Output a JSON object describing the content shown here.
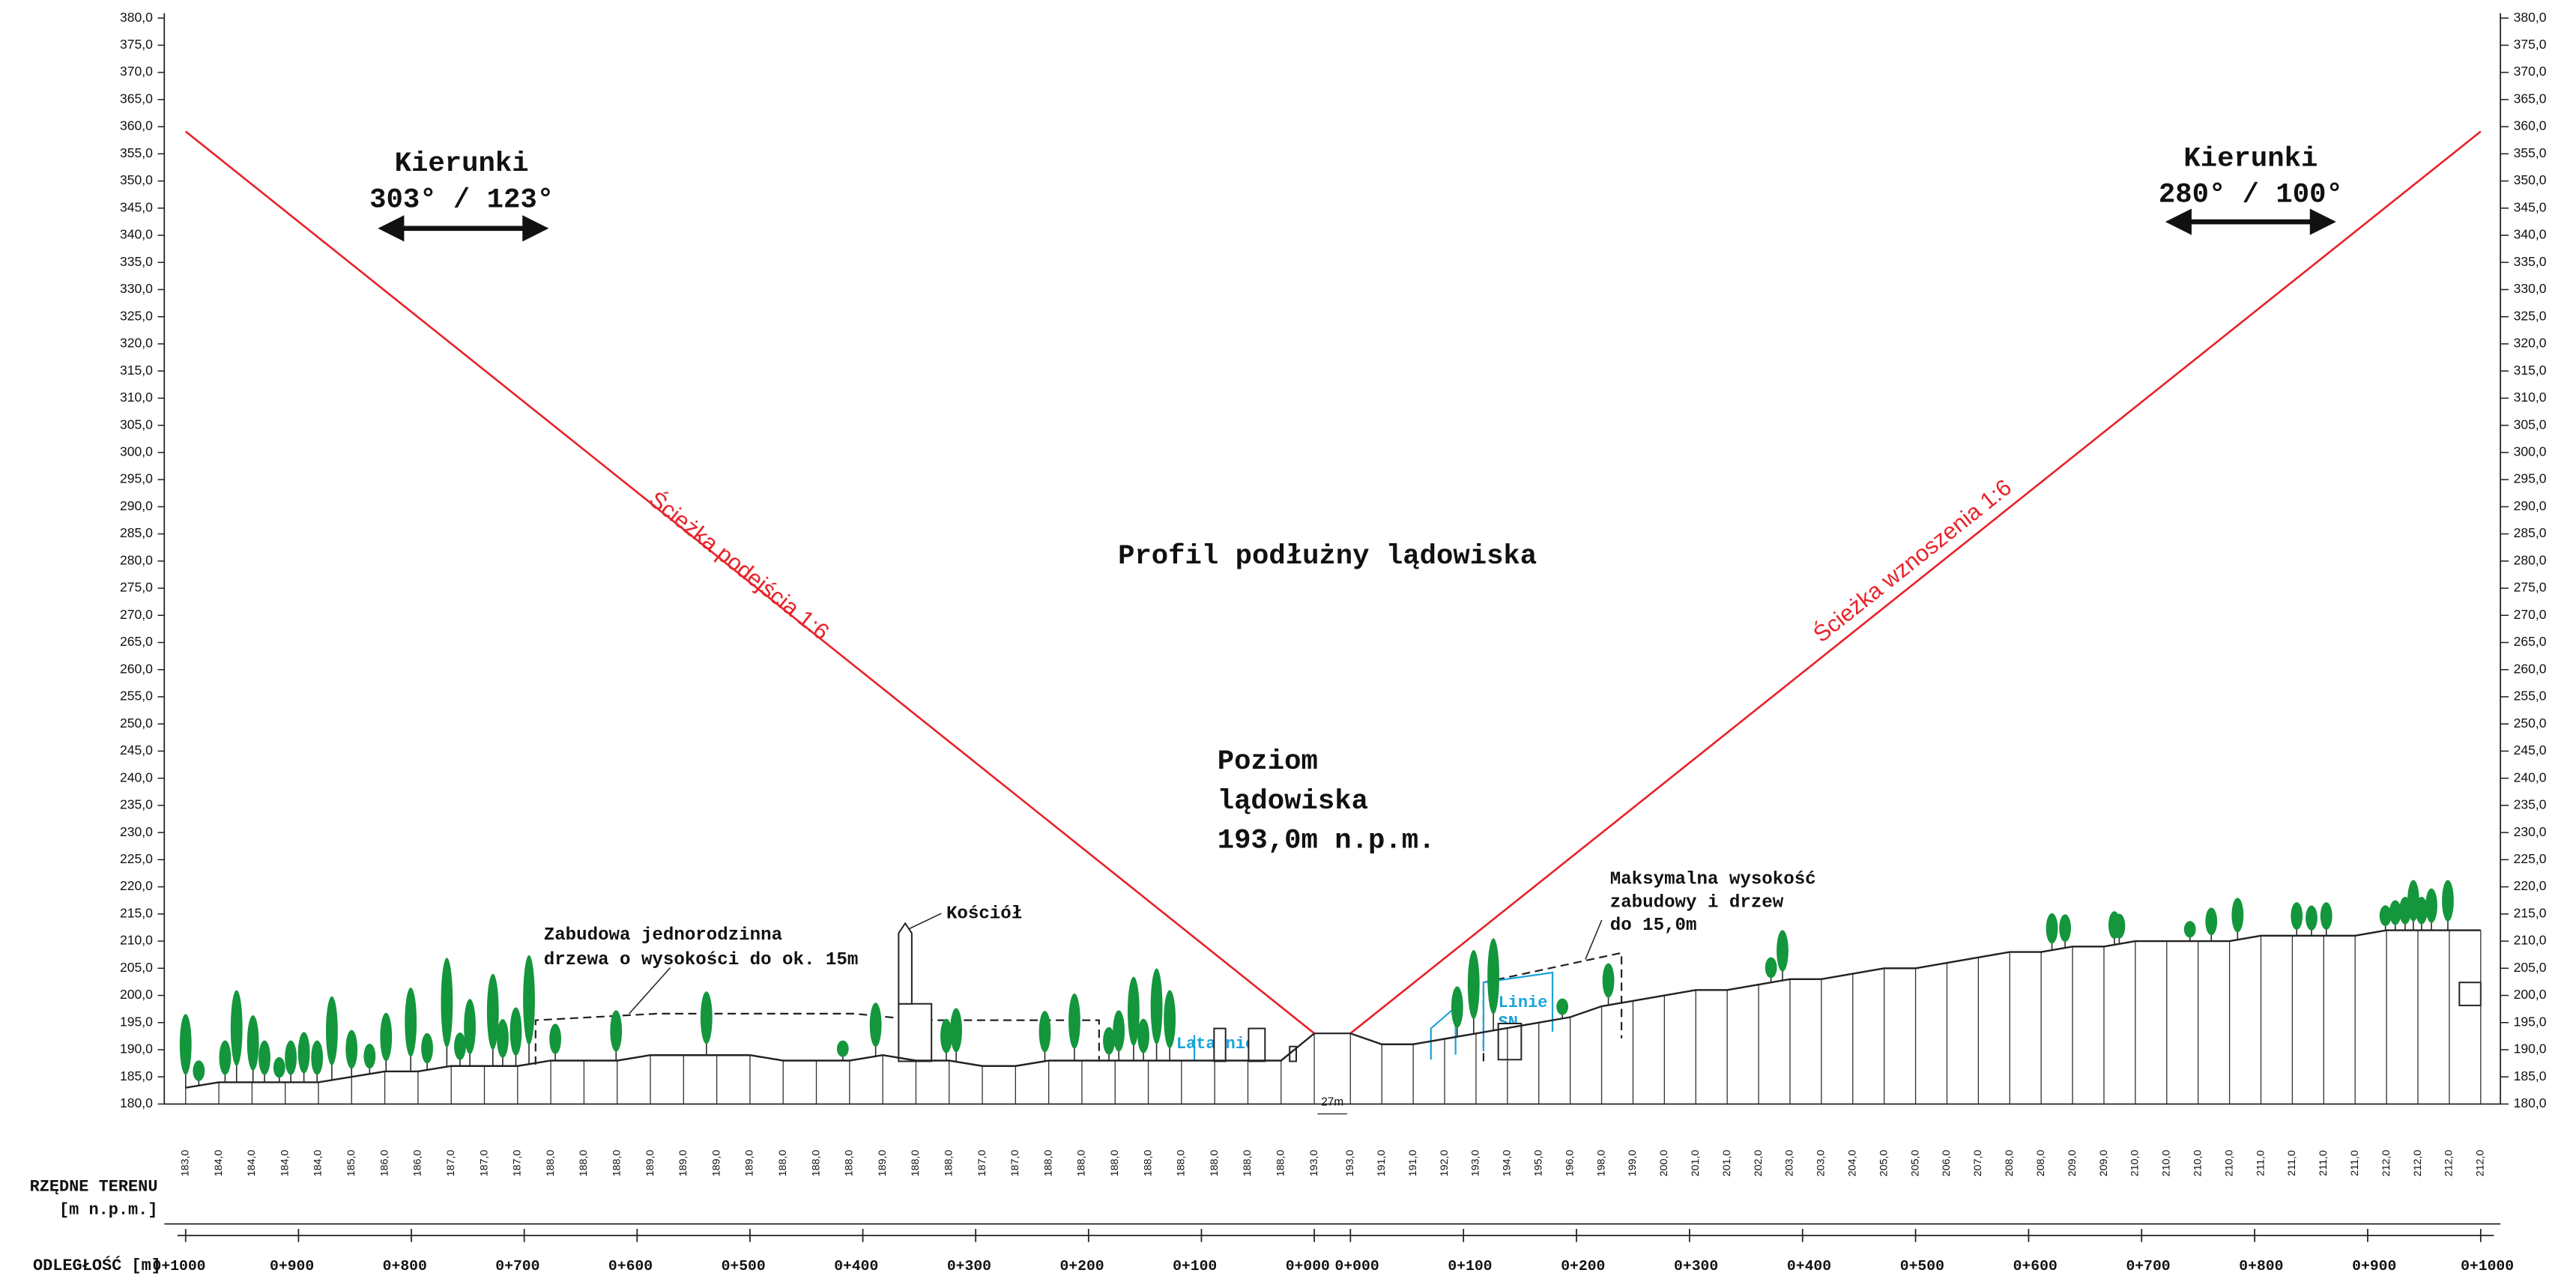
{
  "title": "Profil podłużny lądowiska",
  "directions": [
    {
      "label": "Kierunki",
      "angles": "303° / 123°"
    },
    {
      "label": "Kierunki",
      "angles": "280° / 100°"
    }
  ],
  "paths": {
    "approach": "Ścieżka podejścia 1:6",
    "climb": "Ścieżka wznoszenia 1:6"
  },
  "helipad_level": [
    "Poziom",
    "lądowiska",
    "193,0m n.p.m."
  ],
  "annotations": {
    "housing": [
      "Zabudowa jednorodzinna",
      "drzewa o wysokości do ok. 15m"
    ],
    "church": "Kościół",
    "lamps": "Latarnie",
    "power_lines": [
      "Linie",
      "SN"
    ],
    "max_height": [
      "Maksymalna wysokość",
      "zabudowy i drzew",
      "do 15,0m"
    ],
    "pad_width": "27m"
  },
  "elevation_axis": {
    "ticks": [
      {
        "value": 380,
        "label": "380,0"
      },
      {
        "value": 375,
        "label": "375,0"
      },
      {
        "value": 370,
        "label": "370,0"
      },
      {
        "value": 365,
        "label": "365,0"
      },
      {
        "value": 360,
        "label": "360,0"
      },
      {
        "value": 355,
        "label": "355,0"
      },
      {
        "value": 350,
        "label": "350,0"
      },
      {
        "value": 345,
        "label": "345,0"
      },
      {
        "value": 340,
        "label": "340,0"
      },
      {
        "value": 335,
        "label": "335,0"
      },
      {
        "value": 330,
        "label": "330,0"
      },
      {
        "value": 325,
        "label": "325,0"
      },
      {
        "value": 320,
        "label": "320,0"
      },
      {
        "value": 315,
        "label": "315,0"
      },
      {
        "value": 310,
        "label": "310,0"
      },
      {
        "value": 305,
        "label": "305,0"
      },
      {
        "value": 300,
        "label": "300,0"
      },
      {
        "value": 295,
        "label": "295,0"
      },
      {
        "value": 290,
        "label": "290,0"
      },
      {
        "value": 285,
        "label": "285,0"
      },
      {
        "value": 280,
        "label": "280,0"
      },
      {
        "value": 275,
        "label": "275,0"
      },
      {
        "value": 270,
        "label": "270,0"
      },
      {
        "value": 265,
        "label": "265,0"
      },
      {
        "value": 260,
        "label": "260,0"
      },
      {
        "value": 255,
        "label": "255,0"
      },
      {
        "value": 250,
        "label": "250,0"
      },
      {
        "value": 245,
        "label": "245,0"
      },
      {
        "value": 240,
        "label": "240,0"
      },
      {
        "value": 235,
        "label": "235,0"
      },
      {
        "value": 230,
        "label": "230,0"
      },
      {
        "value": 225,
        "label": "225,0"
      },
      {
        "value": 220,
        "label": "220,0"
      },
      {
        "value": 215,
        "label": "215,0"
      },
      {
        "value": 210,
        "label": "210,0"
      },
      {
        "value": 205,
        "label": "205,0"
      },
      {
        "value": 200,
        "label": "200,0"
      },
      {
        "value": 195,
        "label": "195,0"
      },
      {
        "value": 190,
        "label": "190,0"
      },
      {
        "value": 185,
        "label": "185,0"
      },
      {
        "value": 180,
        "label": "180,0"
      }
    ]
  },
  "terrain": {
    "label": [
      "RZĘDNE TERENU",
      "[m n.p.m.]"
    ],
    "left": [
      {
        "value": 183,
        "label": "183,0"
      },
      {
        "value": 184,
        "label": "184,0"
      },
      {
        "value": 184,
        "label": "184,0"
      },
      {
        "value": 184,
        "label": "184,0"
      },
      {
        "value": 184,
        "label": "184,0"
      },
      {
        "value": 185,
        "label": "185,0"
      },
      {
        "value": 186,
        "label": "186,0"
      },
      {
        "value": 186,
        "label": "186,0"
      },
      {
        "value": 187,
        "label": "187,0"
      },
      {
        "value": 187,
        "label": "187,0"
      },
      {
        "value": 187,
        "label": "187,0"
      },
      {
        "value": 188,
        "label": "188,0"
      },
      {
        "value": 188,
        "label": "188,0"
      },
      {
        "value": 188,
        "label": "188,0"
      },
      {
        "value": 189,
        "label": "189,0"
      },
      {
        "value": 189,
        "label": "189,0"
      },
      {
        "value": 189,
        "label": "189,0"
      },
      {
        "value": 189,
        "label": "189,0"
      },
      {
        "value": 188,
        "label": "188,0"
      },
      {
        "value": 188,
        "label": "188,0"
      },
      {
        "value": 188,
        "label": "188,0"
      },
      {
        "value": 189,
        "label": "189,0"
      },
      {
        "value": 188,
        "label": "188,0"
      },
      {
        "value": 188,
        "label": "188,0"
      },
      {
        "value": 187,
        "label": "187,0"
      },
      {
        "value": 187,
        "label": "187,0"
      },
      {
        "value": 188,
        "label": "188,0"
      },
      {
        "value": 188,
        "label": "188,0"
      },
      {
        "value": 188,
        "label": "188,0"
      },
      {
        "value": 188,
        "label": "188,0"
      },
      {
        "value": 188,
        "label": "188,0"
      },
      {
        "value": 188,
        "label": "188,0"
      },
      {
        "value": 188,
        "label": "188,0"
      },
      {
        "value": 188,
        "label": "188,0"
      },
      {
        "value": 193,
        "label": "193,0"
      }
    ],
    "right": [
      {
        "value": 193,
        "label": "193,0"
      },
      {
        "value": 191,
        "label": "191,0"
      },
      {
        "value": 191,
        "label": "191,0"
      },
      {
        "value": 192,
        "label": "192,0"
      },
      {
        "value": 193,
        "label": "193,0"
      },
      {
        "value": 194,
        "label": "194,0"
      },
      {
        "value": 195,
        "label": "195,0"
      },
      {
        "value": 196,
        "label": "196,0"
      },
      {
        "value": 198,
        "label": "198,0"
      },
      {
        "value": 199,
        "label": "199,0"
      },
      {
        "value": 200,
        "label": "200,0"
      },
      {
        "value": 201,
        "label": "201,0"
      },
      {
        "value": 201,
        "label": "201,0"
      },
      {
        "value": 202,
        "label": "202,0"
      },
      {
        "value": 203,
        "label": "203,0"
      },
      {
        "value": 203,
        "label": "203,0"
      },
      {
        "value": 204,
        "label": "204,0"
      },
      {
        "value": 205,
        "label": "205,0"
      },
      {
        "value": 205,
        "label": "205,0"
      },
      {
        "value": 206,
        "label": "206,0"
      },
      {
        "value": 207,
        "label": "207,0"
      },
      {
        "value": 208,
        "label": "208,0"
      },
      {
        "value": 208,
        "label": "208,0"
      },
      {
        "value": 209,
        "label": "209,0"
      },
      {
        "value": 209,
        "label": "209,0"
      },
      {
        "value": 210,
        "label": "210,0"
      },
      {
        "value": 210,
        "label": "210,0"
      },
      {
        "value": 210,
        "label": "210,0"
      },
      {
        "value": 210,
        "label": "210,0"
      },
      {
        "value": 211,
        "label": "211,0"
      },
      {
        "value": 211,
        "label": "211,0"
      },
      {
        "value": 211,
        "label": "211,0"
      },
      {
        "value": 211,
        "label": "211,0"
      },
      {
        "value": 212,
        "label": "212,0"
      },
      {
        "value": 212,
        "label": "212,0"
      },
      {
        "value": 212,
        "label": "212,0"
      },
      {
        "value": 212,
        "label": "212,0"
      }
    ]
  },
  "distance": {
    "label": "ODLEGŁOŚĆ [m]",
    "left": [
      {
        "value": 1000,
        "label": "0+1000"
      },
      {
        "value": 900,
        "label": "0+900"
      },
      {
        "value": 800,
        "label": "0+800"
      },
      {
        "value": 700,
        "label": "0+700"
      },
      {
        "value": 600,
        "label": "0+600"
      },
      {
        "value": 500,
        "label": "0+500"
      },
      {
        "value": 400,
        "label": "0+400"
      },
      {
        "value": 300,
        "label": "0+300"
      },
      {
        "value": 200,
        "label": "0+200"
      },
      {
        "value": 100,
        "label": "0+100"
      },
      {
        "value": 0,
        "label": "0+000"
      }
    ],
    "right": [
      {
        "value": 0,
        "label": "0+000"
      },
      {
        "value": 100,
        "label": "0+100"
      },
      {
        "value": 200,
        "label": "0+200"
      },
      {
        "value": 300,
        "label": "0+300"
      },
      {
        "value": 400,
        "label": "0+400"
      },
      {
        "value": 500,
        "label": "0+500"
      },
      {
        "value": 600,
        "label": "0+600"
      },
      {
        "value": 700,
        "label": "0+700"
      },
      {
        "value": 800,
        "label": "0+800"
      },
      {
        "value": 900,
        "label": "0+900"
      },
      {
        "value": 1000,
        "label": "0+1000"
      }
    ]
  }
}
